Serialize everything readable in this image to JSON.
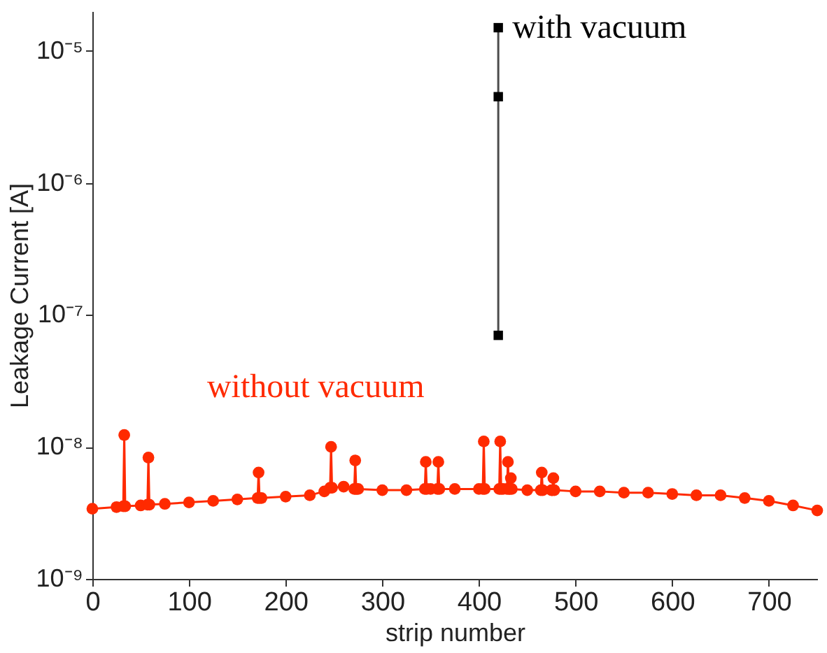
{
  "chart_data": {
    "type": "line",
    "xlabel": "strip number",
    "ylabel": "Leakage Current [A]",
    "log": "y",
    "grid": false,
    "line_style": "solid",
    "xlim": [
      0,
      750
    ],
    "xticks": [
      0,
      100,
      200,
      300,
      400,
      500,
      600,
      700
    ],
    "ylim": [
      1e-09,
      2e-05
    ],
    "yticks": [
      {
        "value": 1e-09,
        "label": "10⁻⁹"
      },
      {
        "value": 1e-08,
        "label": "10⁻⁸"
      },
      {
        "value": 1e-07,
        "label": "10⁻⁷"
      },
      {
        "value": 1e-06,
        "label": "10⁻⁶"
      },
      {
        "value": 1e-05,
        "label": "10⁻⁵"
      }
    ],
    "series": [
      {
        "name": "without vacuum",
        "color": "#ff2a00",
        "marker": "circle",
        "x": [
          0,
          25,
          32,
          33,
          34,
          50,
          57,
          58,
          59,
          75,
          100,
          125,
          150,
          171,
          172,
          173,
          175,
          200,
          225,
          240,
          246,
          247,
          248,
          260,
          271,
          272,
          273,
          275,
          300,
          325,
          344,
          345,
          346,
          350,
          357,
          358,
          359,
          375,
          400,
          404,
          405,
          406,
          421,
          422,
          423,
          425,
          429,
          430,
          431,
          432,
          433,
          434,
          450,
          464,
          465,
          466,
          475,
          476,
          477,
          478,
          500,
          525,
          550,
          575,
          600,
          625,
          650,
          675,
          700,
          725,
          750
        ],
        "values": [
          3.4e-09,
          3.5e-09,
          3.55e-09,
          1.23e-08,
          3.55e-09,
          3.6e-09,
          3.65e-09,
          8.3e-09,
          3.65e-09,
          3.7e-09,
          3.8e-09,
          3.9e-09,
          4e-09,
          4.1e-09,
          6.4e-09,
          4.1e-09,
          4.1e-09,
          4.2e-09,
          4.3e-09,
          4.6e-09,
          4.9e-09,
          1e-08,
          4.9e-09,
          5e-09,
          4.8e-09,
          7.9e-09,
          4.8e-09,
          4.8e-09,
          4.7e-09,
          4.7e-09,
          4.8e-09,
          7.7e-09,
          4.8e-09,
          4.8e-09,
          4.8e-09,
          7.7e-09,
          4.8e-09,
          4.8e-09,
          4.8e-09,
          4.8e-09,
          1.1e-08,
          4.8e-09,
          4.8e-09,
          1.1e-08,
          4.8e-09,
          4.8e-09,
          4.8e-09,
          7.7e-09,
          4.8e-09,
          4.8e-09,
          5.8e-09,
          4.8e-09,
          4.7e-09,
          4.7e-09,
          6.4e-09,
          4.7e-09,
          4.7e-09,
          4.7e-09,
          5.8e-09,
          4.7e-09,
          4.6e-09,
          4.6e-09,
          4.5e-09,
          4.5e-09,
          4.4e-09,
          4.3e-09,
          4.3e-09,
          4.1e-09,
          3.9e-09,
          3.6e-09,
          3.3e-09
        ]
      },
      {
        "name": "with vacuum",
        "color": "#000000",
        "marker": "square",
        "x": [
          420,
          420,
          420
        ],
        "values": [
          7e-08,
          4.5e-06,
          1.5e-05
        ]
      }
    ]
  }
}
